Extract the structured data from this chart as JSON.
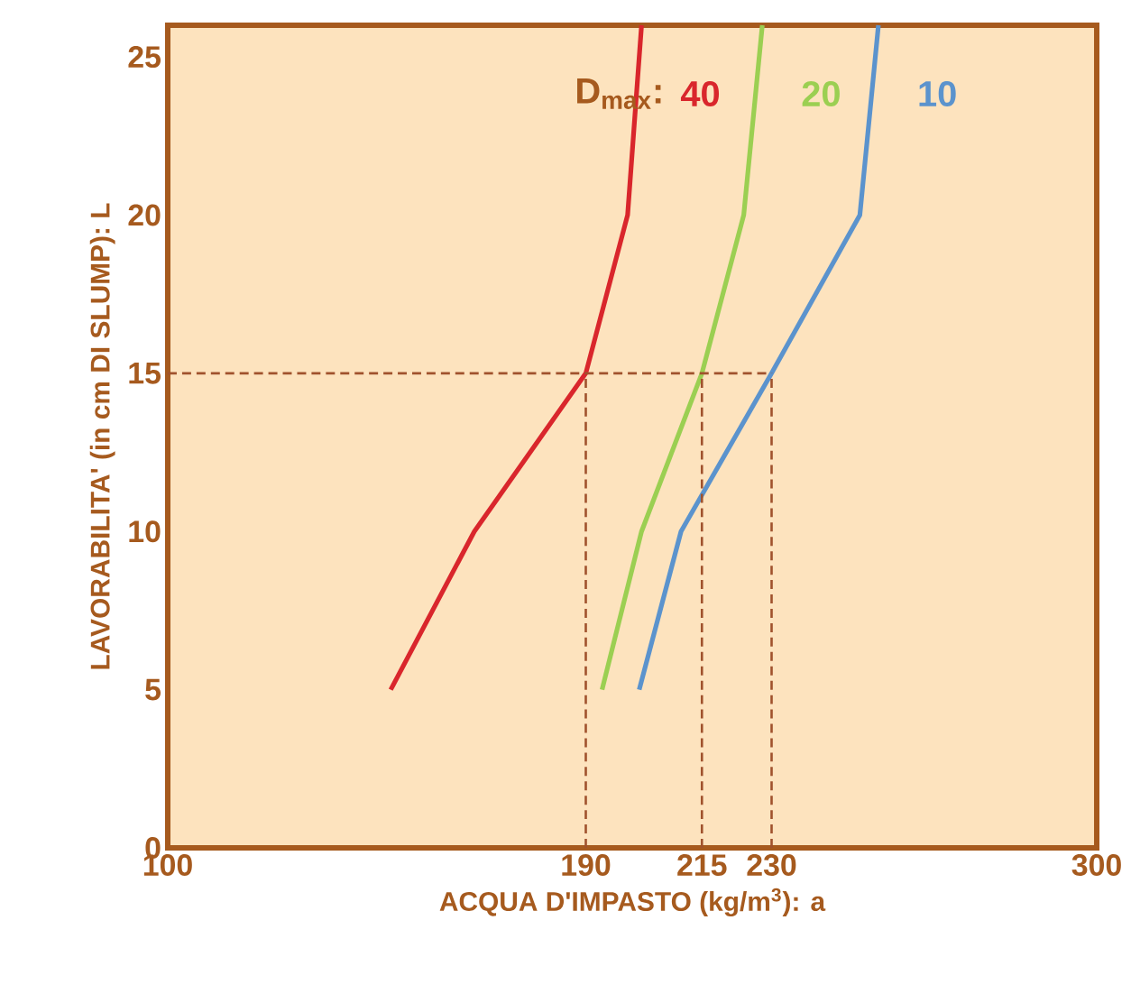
{
  "chart_data": {
    "type": "line",
    "xlabel": "ACQUA D'IMPASTO (kg/m$^{3}$): a",
    "ylabel": "LAVORABILITA' (in cm DI SLUMP): L",
    "annotations": [
      "D$_{max}$:"
    ],
    "xlim": [
      100,
      300
    ],
    "ylim": [
      0,
      26
    ],
    "xticks": [
      100,
      190,
      215,
      230,
      300
    ],
    "yticks": [
      0,
      5,
      10,
      15,
      20,
      25
    ],
    "series": [
      {
        "name": "40",
        "color": "#d9262c",
        "x": [
          148,
          166,
          190,
          199,
          202
        ],
        "values": [
          5,
          10,
          15,
          20,
          26
        ]
      },
      {
        "name": "20",
        "color": "#9bcf52",
        "x": [
          193.5,
          202,
          215,
          224,
          228
        ],
        "values": [
          5,
          10,
          15,
          20,
          26
        ]
      },
      {
        "name": "10",
        "color": "#5b93cd",
        "x": [
          201.5,
          210.5,
          230,
          249,
          253
        ],
        "values": [
          5,
          10,
          15,
          20,
          26
        ]
      },
      {
        "color": "#a0522d",
        "line_style": "dashed",
        "x": [
          100,
          230
        ],
        "values": [
          15,
          15
        ]
      },
      {
        "color": "#a0522d",
        "line_style": "dashed",
        "x": [
          190,
          190
        ],
        "values": [
          0,
          15
        ]
      },
      {
        "color": "#a0522d",
        "line_style": "dashed",
        "x": [
          215,
          215
        ],
        "values": [
          0,
          15
        ]
      },
      {
        "color": "#a0522d",
        "line_style": "dashed",
        "x": [
          230,
          230
        ],
        "values": [
          0,
          15
        ]
      }
    ]
  }
}
